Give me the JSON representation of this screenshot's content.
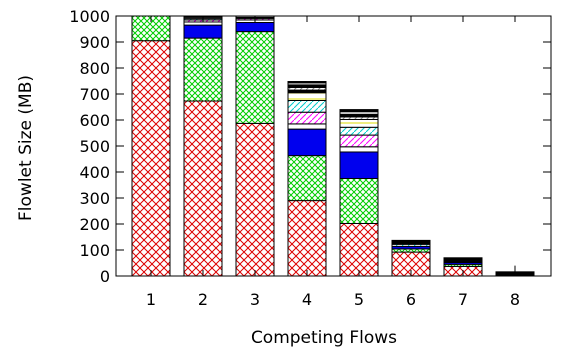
{
  "chart_data": {
    "type": "bar",
    "stacked": true,
    "xlabel": "Competing Flows",
    "ylabel": "Flowlet Size (MB)",
    "ylim": [
      0,
      1000
    ],
    "yticks": [
      0,
      100,
      200,
      300,
      400,
      500,
      600,
      700,
      800,
      900,
      1000
    ],
    "categories": [
      "1",
      "2",
      "3",
      "4",
      "5",
      "6",
      "7",
      "8"
    ],
    "grid": false,
    "legend": "none",
    "segments": [
      [
        {
          "value": 905,
          "color": "#dd0000",
          "pattern": "crosshatch"
        },
        {
          "value": 95,
          "color": "#00cc00",
          "pattern": "crosshatch"
        }
      ],
      [
        {
          "value": 673,
          "color": "#dd0000",
          "pattern": "crosshatch"
        },
        {
          "value": 242,
          "color": "#00cc00",
          "pattern": "crosshatch"
        },
        {
          "value": 50,
          "color": "#0000ee",
          "pattern": "solid"
        },
        {
          "value": 12,
          "color": "#ffffff",
          "pattern": "white"
        },
        {
          "value": 8,
          "color": "#ff00ff",
          "pattern": "diagonal"
        },
        {
          "value": 5,
          "color": "#00cccc",
          "pattern": "diagonal"
        },
        {
          "value": 5,
          "color": "#dddd00",
          "pattern": "horizontal"
        },
        {
          "value": 5,
          "color": "#000000",
          "pattern": "solid"
        }
      ],
      [
        {
          "value": 587,
          "color": "#dd0000",
          "pattern": "crosshatch"
        },
        {
          "value": 353,
          "color": "#00cc00",
          "pattern": "crosshatch"
        },
        {
          "value": 35,
          "color": "#0000ee",
          "pattern": "solid"
        },
        {
          "value": 10,
          "color": "#ffffff",
          "pattern": "white"
        },
        {
          "value": 6,
          "color": "#ff00ff",
          "pattern": "diagonal"
        },
        {
          "value": 4,
          "color": "#000000",
          "pattern": "solid"
        },
        {
          "value": 5,
          "color": "#dddd00",
          "pattern": "horizontal"
        }
      ],
      [
        {
          "value": 290,
          "color": "#dd0000",
          "pattern": "crosshatch"
        },
        {
          "value": 173,
          "color": "#00cc00",
          "pattern": "crosshatch"
        },
        {
          "value": 102,
          "color": "#0000ee",
          "pattern": "solid"
        },
        {
          "value": 20,
          "color": "#ffffff",
          "pattern": "white"
        },
        {
          "value": 45,
          "color": "#ff00ff",
          "pattern": "diagonal"
        },
        {
          "value": 45,
          "color": "#00cccc",
          "pattern": "diagonal"
        },
        {
          "value": 30,
          "color": "#dddd00",
          "pattern": "horizontal"
        },
        {
          "value": 10,
          "color": "#000000",
          "pattern": "solid"
        },
        {
          "value": 10,
          "color": "#888888",
          "pattern": "diagonal"
        },
        {
          "value": 10,
          "color": "#000000",
          "pattern": "solid"
        },
        {
          "value": 8,
          "color": "#ffffff",
          "pattern": "white"
        },
        {
          "value": 5,
          "color": "#000000",
          "pattern": "solid"
        }
      ],
      [
        {
          "value": 202,
          "color": "#dd0000",
          "pattern": "crosshatch"
        },
        {
          "value": 173,
          "color": "#00cc00",
          "pattern": "crosshatch"
        },
        {
          "value": 102,
          "color": "#0000ee",
          "pattern": "solid"
        },
        {
          "value": 20,
          "color": "#ffffff",
          "pattern": "white"
        },
        {
          "value": 45,
          "color": "#ff00ff",
          "pattern": "diagonal"
        },
        {
          "value": 30,
          "color": "#00cccc",
          "pattern": "diagonal"
        },
        {
          "value": 30,
          "color": "#dddd00",
          "pattern": "horizontal"
        },
        {
          "value": 10,
          "color": "#888888",
          "pattern": "diagonal"
        },
        {
          "value": 10,
          "color": "#000000",
          "pattern": "solid"
        },
        {
          "value": 10,
          "color": "#ffffff",
          "pattern": "white"
        },
        {
          "value": 8,
          "color": "#000000",
          "pattern": "solid"
        }
      ],
      [
        {
          "value": 92,
          "color": "#dd0000",
          "pattern": "crosshatch"
        },
        {
          "value": 12,
          "color": "#00cc00",
          "pattern": "crosshatch"
        },
        {
          "value": 10,
          "color": "#0000ee",
          "pattern": "solid"
        },
        {
          "value": 8,
          "color": "#00cccc",
          "pattern": "diagonal"
        },
        {
          "value": 15,
          "color": "#000000",
          "pattern": "solid"
        }
      ],
      [
        {
          "value": 37,
          "color": "#dd0000",
          "pattern": "crosshatch"
        },
        {
          "value": 8,
          "color": "#00cc00",
          "pattern": "crosshatch"
        },
        {
          "value": 7,
          "color": "#0000ee",
          "pattern": "solid"
        },
        {
          "value": 18,
          "color": "#000000",
          "pattern": "solid"
        }
      ],
      [
        {
          "value": 4,
          "color": "#dd0000",
          "pattern": "crosshatch"
        },
        {
          "value": 4,
          "color": "#00cc00",
          "pattern": "crosshatch"
        },
        {
          "value": 8,
          "color": "#000000",
          "pattern": "solid"
        }
      ]
    ],
    "error_bar": {
      "category": "8",
      "low": 0,
      "high": 40
    }
  }
}
